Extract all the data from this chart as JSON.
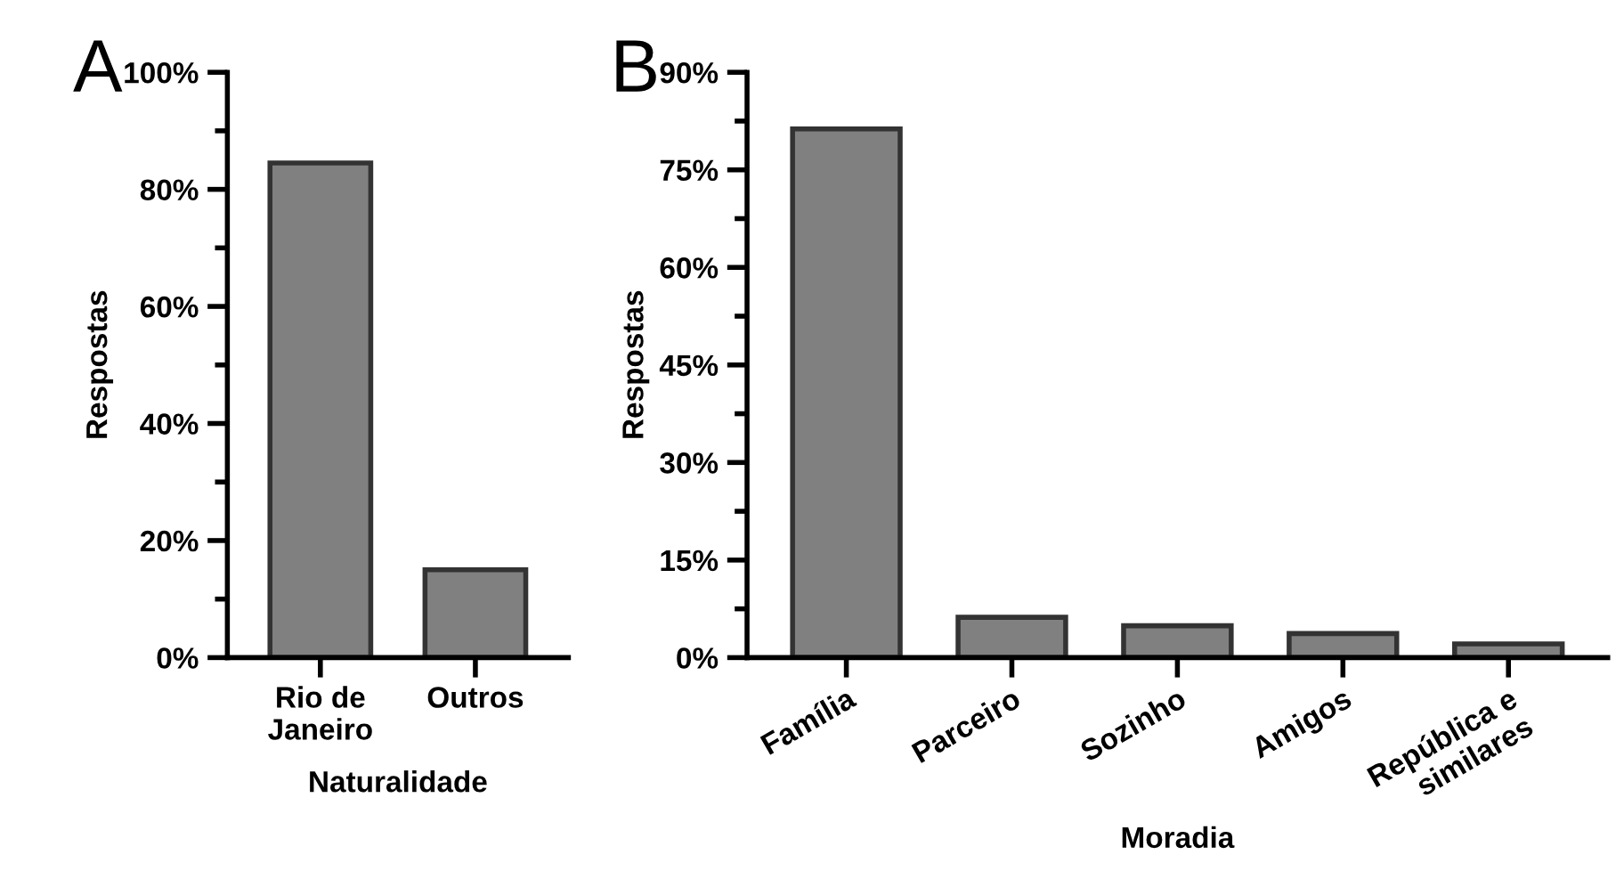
{
  "chart_data": [
    {
      "type": "bar",
      "title": "A",
      "xlabel": "Naturalidade",
      "ylabel": "Respostas",
      "categories": [
        "Rio de\nJaneiro",
        "Outros"
      ],
      "values": [
        84.5,
        15
      ],
      "color": "#808080",
      "ylim": [
        0,
        100
      ],
      "yticks": [
        {
          "value": 0,
          "label": "0%"
        },
        {
          "value": 20,
          "label": "20%"
        },
        {
          "value": 40,
          "label": "40%"
        },
        {
          "value": 60,
          "label": "60%"
        },
        {
          "value": 80,
          "label": "80%"
        },
        {
          "value": 100,
          "label": "100%"
        }
      ],
      "grid": false
    },
    {
      "type": "bar",
      "title": "B",
      "xlabel": "Moradia",
      "ylabel": "Respostas",
      "categories": [
        "Família",
        "Parceiro",
        "Sozinho",
        "Amigos",
        "República e\nsimilares"
      ],
      "values": [
        81.3,
        6.2,
        4.9,
        3.7,
        2.1
      ],
      "color": "#808080",
      "ylim": [
        0,
        90
      ],
      "yticks": [
        {
          "value": 0,
          "label": "0%"
        },
        {
          "value": 15,
          "label": "15%"
        },
        {
          "value": 30,
          "label": "30%"
        },
        {
          "value": 45,
          "label": "45%"
        },
        {
          "value": 60,
          "label": "60%"
        },
        {
          "value": 75,
          "label": "75%"
        },
        {
          "value": 90,
          "label": "90%"
        }
      ],
      "grid": false
    }
  ]
}
